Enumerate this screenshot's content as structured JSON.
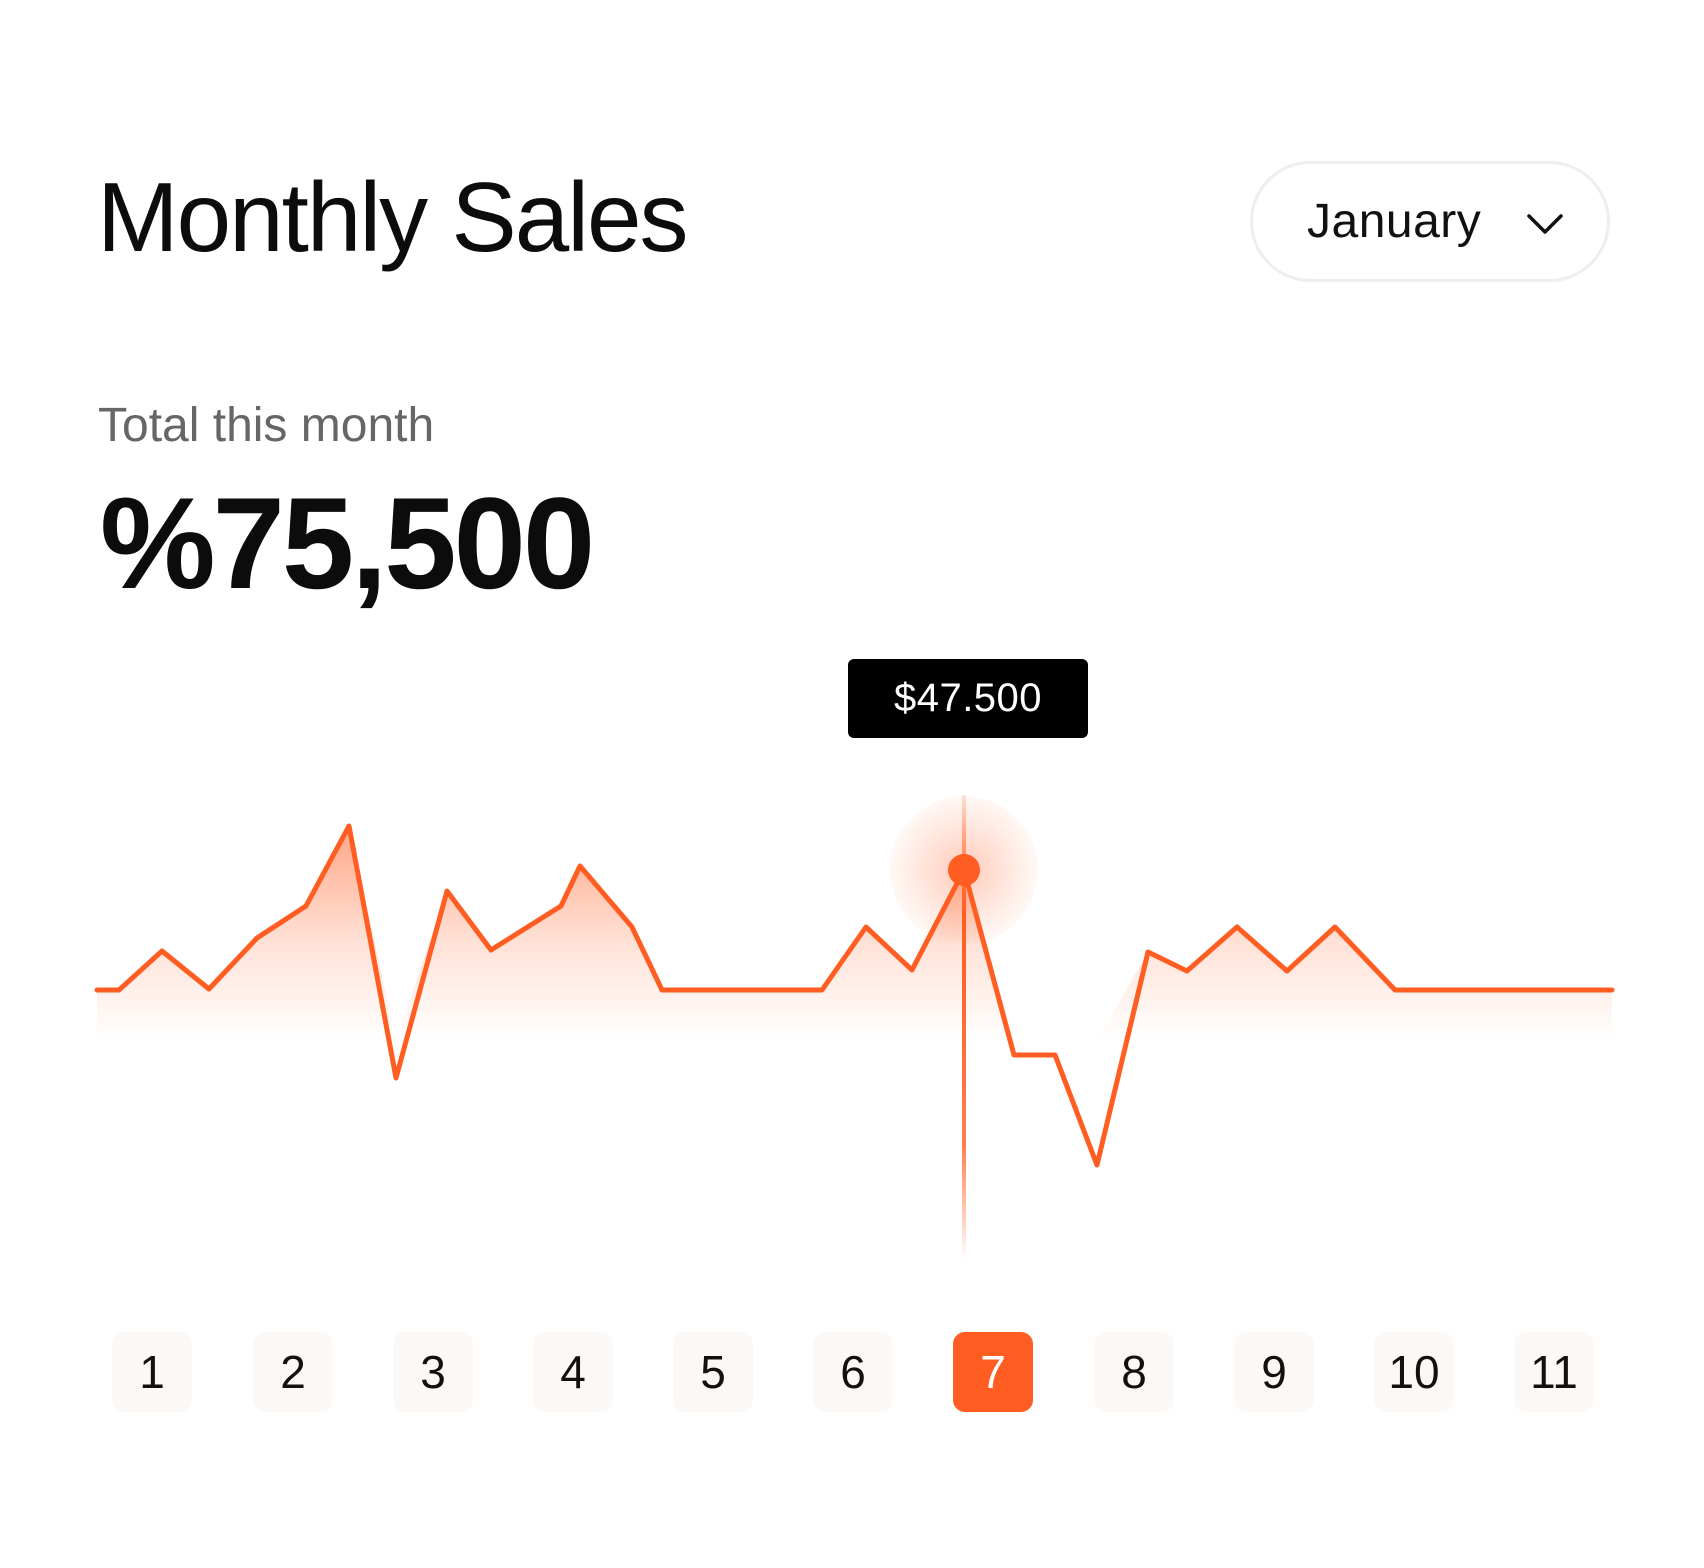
{
  "header": {
    "title": "Monthly Sales",
    "month_select": {
      "value": "January",
      "icon": "chevron-down-icon"
    }
  },
  "summary": {
    "label": "Total this month",
    "value": "%75,500"
  },
  "tooltip": {
    "value": "$47.500"
  },
  "colors": {
    "accent": "#ff5d22",
    "tooltip_bg": "#000000",
    "day_bg": "#fcf8f5",
    "text": "#0c0c0c",
    "muted": "#666666"
  },
  "days": {
    "items": [
      "1",
      "2",
      "3",
      "4",
      "5",
      "6",
      "7",
      "8",
      "9",
      "10",
      "11"
    ],
    "selected_index": 6
  },
  "chart_data": {
    "type": "area",
    "title": "",
    "xlabel": "",
    "ylabel": "",
    "categories": [
      "1",
      "2",
      "3",
      "4",
      "5",
      "6",
      "7",
      "8",
      "9",
      "10",
      "11"
    ],
    "highlighted_point": {
      "x": 7,
      "value": 47500
    },
    "grid": false,
    "legend": "none"
  }
}
